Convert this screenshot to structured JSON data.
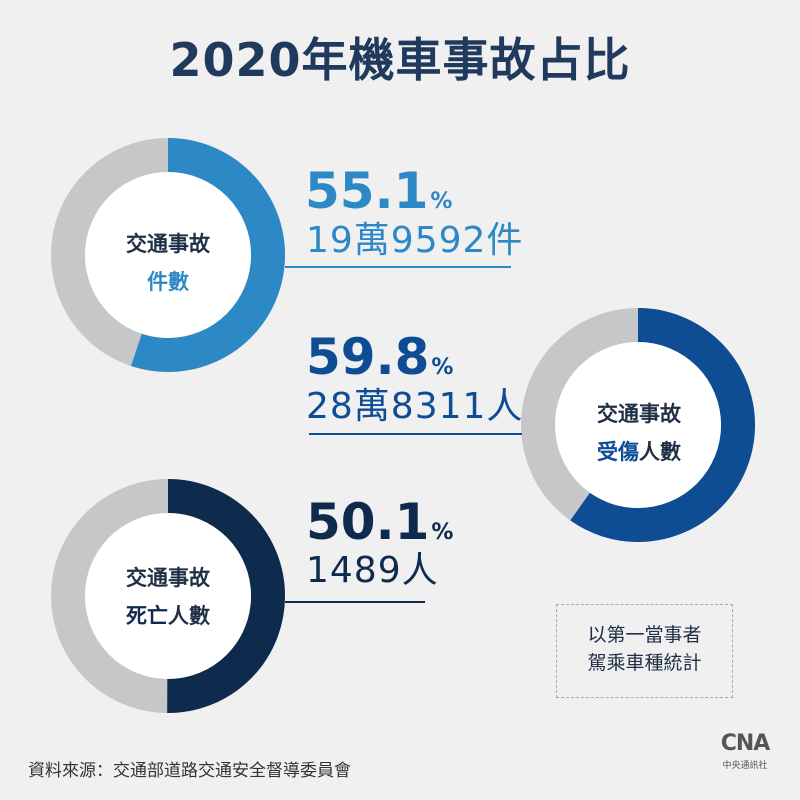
{
  "title": "2020年機車事故占比",
  "colors": {
    "track": "#c6c7c9",
    "accident": "#2d88c6",
    "injury": "#0e4c93",
    "death": "#0e2a4d"
  },
  "chart_data": [
    {
      "type": "pie",
      "label_line1": "交通事故",
      "label_line2_accent": "件數",
      "label_line2_rest": "",
      "percent": 55.1,
      "percent_text": "55.1",
      "unit": "%",
      "count_text": "19萬9592件"
    },
    {
      "type": "pie",
      "label_line1": "交通事故",
      "label_line2_accent": "受傷",
      "label_line2_rest": "人數",
      "percent": 59.8,
      "percent_text": "59.8",
      "unit": "%",
      "count_text": "28萬8311人"
    },
    {
      "type": "pie",
      "label_line1": "交通事故",
      "label_line2_accent": "死亡",
      "label_line2_rest": "人數",
      "percent": 50.1,
      "percent_text": "50.1",
      "unit": "%",
      "count_text": "1489人"
    }
  ],
  "note": {
    "line1": "以第一當事者",
    "line2": "駕乘車種統計"
  },
  "source": "資料來源：交通部道路交通安全督導委員會",
  "logo": {
    "mark": "CNA",
    "sub": "中央通訊社"
  }
}
